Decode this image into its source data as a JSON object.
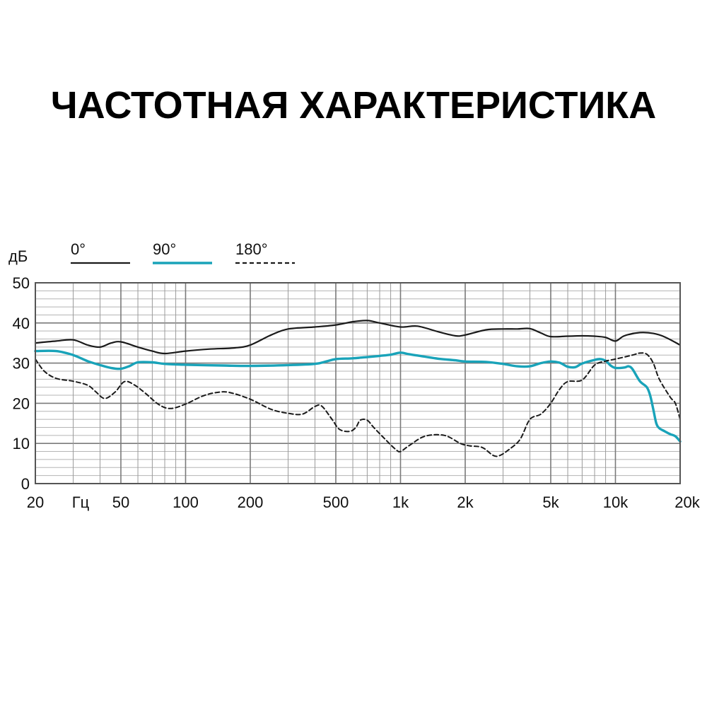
{
  "page": {
    "title": "ЧАСТОТНАЯ ХАРАКТЕРИСТИКА"
  },
  "chart_data": {
    "type": "line",
    "ylabel": "дБ",
    "xunit_label": "Гц",
    "x_scale": "log",
    "xlim": [
      20,
      20000
    ],
    "ylim": [
      0,
      50
    ],
    "grid": true,
    "legend_position": "top-left",
    "yticks": [
      0,
      10,
      20,
      30,
      40,
      50
    ],
    "xticks": [
      {
        "value": 20,
        "label": "20"
      },
      {
        "value": 50,
        "label": "50"
      },
      {
        "value": 100,
        "label": "100"
      },
      {
        "value": 200,
        "label": "200"
      },
      {
        "value": 500,
        "label": "500"
      },
      {
        "value": 1000,
        "label": "1k"
      },
      {
        "value": 2000,
        "label": "2k"
      },
      {
        "value": 5000,
        "label": "5k"
      },
      {
        "value": 10000,
        "label": "10k"
      },
      {
        "value": 20000,
        "label": "20k"
      }
    ],
    "colors": {
      "s0": "#1a1a1a",
      "s90": "#19a3b9",
      "s180": "#1a1a1a",
      "grid": "#9a9a9a",
      "frame": "#555555"
    },
    "series": [
      {
        "name": "0°",
        "style": "solid",
        "points": [
          [
            20,
            35
          ],
          [
            25,
            35.5
          ],
          [
            30,
            35.8
          ],
          [
            35,
            34.5
          ],
          [
            40,
            34
          ],
          [
            45,
            35
          ],
          [
            50,
            35.3
          ],
          [
            60,
            34
          ],
          [
            70,
            33
          ],
          [
            80,
            32.4
          ],
          [
            100,
            33
          ],
          [
            130,
            33.5
          ],
          [
            170,
            33.8
          ],
          [
            200,
            34.5
          ],
          [
            250,
            37
          ],
          [
            300,
            38.5
          ],
          [
            400,
            39
          ],
          [
            500,
            39.5
          ],
          [
            600,
            40.3
          ],
          [
            700,
            40.6
          ],
          [
            800,
            40
          ],
          [
            1000,
            39
          ],
          [
            1200,
            39.2
          ],
          [
            1500,
            37.8
          ],
          [
            1800,
            36.8
          ],
          [
            2000,
            37
          ],
          [
            2500,
            38.3
          ],
          [
            3000,
            38.5
          ],
          [
            3500,
            38.5
          ],
          [
            4000,
            38.6
          ],
          [
            4500,
            37.5
          ],
          [
            5000,
            36.6
          ],
          [
            6000,
            36.7
          ],
          [
            7000,
            36.8
          ],
          [
            8000,
            36.7
          ],
          [
            9000,
            36.4
          ],
          [
            10000,
            35.5
          ],
          [
            11000,
            36.8
          ],
          [
            13000,
            37.6
          ],
          [
            15000,
            37.4
          ],
          [
            17000,
            36.5
          ],
          [
            20000,
            34.5
          ]
        ]
      },
      {
        "name": "90°",
        "style": "solid",
        "points": [
          [
            20,
            33
          ],
          [
            25,
            33
          ],
          [
            30,
            32
          ],
          [
            35,
            30.5
          ],
          [
            40,
            29.5
          ],
          [
            45,
            28.8
          ],
          [
            50,
            28.6
          ],
          [
            55,
            29.3
          ],
          [
            60,
            30.2
          ],
          [
            70,
            30.2
          ],
          [
            80,
            29.8
          ],
          [
            100,
            29.6
          ],
          [
            150,
            29.4
          ],
          [
            200,
            29.3
          ],
          [
            300,
            29.5
          ],
          [
            400,
            29.8
          ],
          [
            450,
            30.4
          ],
          [
            500,
            31
          ],
          [
            600,
            31.2
          ],
          [
            700,
            31.5
          ],
          [
            800,
            31.8
          ],
          [
            900,
            32.1
          ],
          [
            1000,
            32.6
          ],
          [
            1100,
            32.2
          ],
          [
            1300,
            31.6
          ],
          [
            1500,
            31.1
          ],
          [
            1800,
            30.7
          ],
          [
            2000,
            30.4
          ],
          [
            2500,
            30.3
          ],
          [
            3000,
            29.8
          ],
          [
            3500,
            29.2
          ],
          [
            4000,
            29.2
          ],
          [
            4500,
            30
          ],
          [
            5000,
            30.4
          ],
          [
            5500,
            30.1
          ],
          [
            6000,
            29.1
          ],
          [
            6500,
            29
          ],
          [
            7000,
            29.9
          ],
          [
            8000,
            30.8
          ],
          [
            8500,
            31
          ],
          [
            9000,
            30.6
          ],
          [
            9500,
            29.4
          ],
          [
            10000,
            28.8
          ],
          [
            11000,
            28.9
          ],
          [
            11500,
            29.2
          ],
          [
            12000,
            28.5
          ],
          [
            13000,
            25.5
          ],
          [
            14000,
            24
          ],
          [
            14500,
            22
          ],
          [
            15000,
            18.5
          ],
          [
            15500,
            15
          ],
          [
            16000,
            13.8
          ],
          [
            17000,
            13
          ],
          [
            18000,
            12.3
          ],
          [
            19000,
            11.8
          ],
          [
            20000,
            10.5
          ]
        ]
      },
      {
        "name": "180°",
        "style": "dashed",
        "points": [
          [
            20,
            31
          ],
          [
            22,
            28
          ],
          [
            25,
            26.2
          ],
          [
            30,
            25.5
          ],
          [
            35,
            24.5
          ],
          [
            38,
            23
          ],
          [
            42,
            21.2
          ],
          [
            47,
            22.8
          ],
          [
            52,
            25.4
          ],
          [
            58,
            24.5
          ],
          [
            65,
            22.5
          ],
          [
            75,
            19.7
          ],
          [
            85,
            18.7
          ],
          [
            100,
            19.8
          ],
          [
            120,
            21.8
          ],
          [
            140,
            22.7
          ],
          [
            160,
            22.7
          ],
          [
            200,
            21
          ],
          [
            250,
            18.5
          ],
          [
            300,
            17.5
          ],
          [
            350,
            17.3
          ],
          [
            400,
            19.2
          ],
          [
            430,
            19.3
          ],
          [
            480,
            16
          ],
          [
            520,
            13.5
          ],
          [
            580,
            13
          ],
          [
            620,
            14
          ],
          [
            650,
            15.8
          ],
          [
            700,
            15.8
          ],
          [
            750,
            14
          ],
          [
            850,
            11
          ],
          [
            950,
            8.5
          ],
          [
            1000,
            8
          ],
          [
            1100,
            9.5
          ],
          [
            1300,
            11.8
          ],
          [
            1600,
            12
          ],
          [
            1900,
            10
          ],
          [
            2100,
            9.4
          ],
          [
            2400,
            9
          ],
          [
            2700,
            7
          ],
          [
            2900,
            7
          ],
          [
            3200,
            8.5
          ],
          [
            3600,
            11
          ],
          [
            4000,
            16
          ],
          [
            4500,
            17.3
          ],
          [
            5000,
            20
          ],
          [
            5500,
            23.5
          ],
          [
            6000,
            25.4
          ],
          [
            7000,
            25.8
          ],
          [
            8000,
            29.5
          ],
          [
            9000,
            30.5
          ],
          [
            10000,
            31
          ],
          [
            12000,
            32
          ],
          [
            13000,
            32.5
          ],
          [
            14000,
            32.2
          ],
          [
            15000,
            30
          ],
          [
            16000,
            26
          ],
          [
            18000,
            21.5
          ],
          [
            19000,
            20
          ],
          [
            20000,
            16
          ]
        ]
      }
    ]
  }
}
